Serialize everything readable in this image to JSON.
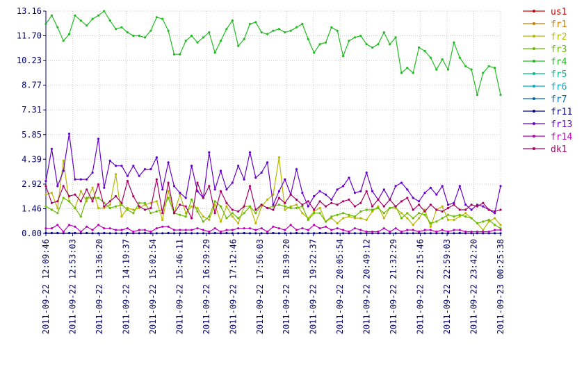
{
  "chart_data": {
    "type": "line",
    "title": "",
    "xlabel": "",
    "ylabel": "",
    "ylim": [
      0,
      13.16
    ],
    "grid": true,
    "legend_position": "right",
    "y_ticks": [
      "0.00",
      "1.46",
      "2.92",
      "4.39",
      "5.85",
      "7.31",
      "8.77",
      "10.23",
      "11.70",
      "13.16"
    ],
    "x_tick_labels": [
      "2011-09-22 12:09:46",
      "2011-09-22 12:53:03",
      "2011-09-22 13:36:20",
      "2011-09-22 14:19:37",
      "2011-09-22 15:02:54",
      "2011-09-22 15:46:11",
      "2011-09-22 16:29:29",
      "2011-09-22 17:12:46",
      "2011-09-22 17:56:03",
      "2011-09-22 18:39:20",
      "2011-09-22 19:22:37",
      "2011-09-22 20:05:54",
      "2011-09-22 20:49:12",
      "2011-09-22 21:32:29",
      "2011-09-22 22:15:46",
      "2011-09-22 22:59:03",
      "2011-09-22 23:42:20",
      "2011-09-23 00:25:38"
    ],
    "series": [
      {
        "name": "us1",
        "color": "#cc0000",
        "values": []
      },
      {
        "name": "fr1",
        "color": "#cc7a00",
        "values": []
      },
      {
        "name": "fr2",
        "color": "#b8b800",
        "values": [
          2.3,
          2.4,
          1.5,
          4.3,
          1.9,
          1.5,
          2.5,
          1.9,
          2.7,
          1.5,
          1.5,
          1.7,
          3.5,
          1.0,
          1.5,
          1.4,
          1.5,
          1.7,
          1.8,
          1.9,
          0.8,
          2.5,
          1.2,
          2.3,
          1.2,
          1.6,
          1.5,
          1.0,
          0.8,
          1.7,
          0.7,
          1.6,
          1.0,
          0.6,
          1.6,
          1.6,
          0.6,
          1.6,
          2.0,
          2.3,
          4.5,
          1.4,
          1.6,
          1.7,
          1.2,
          0.9,
          1.3,
          1.5,
          0.7,
          0.9,
          0.6,
          0.9,
          1.0,
          0.9,
          0.9,
          0.8,
          1.3,
          1.6,
          0.9,
          1.5,
          1.5,
          1.2,
          0.9,
          0.5,
          0.9,
          1.4,
          0.4,
          1.4,
          1.6,
          0.8,
          0.8,
          1.0,
          1.2,
          0.9,
          0.6,
          0.2,
          0.7,
          0.9,
          0.5
        ]
      },
      {
        "name": "fr3",
        "color": "#66bb00",
        "values": [
          1.6,
          1.4,
          1.2,
          2.1,
          1.9,
          1.5,
          1.0,
          2.1,
          2.1,
          2.1,
          1.8,
          1.5,
          1.6,
          1.7,
          1.4,
          1.2,
          1.8,
          1.8,
          1.2,
          1.3,
          1.4,
          2.1,
          1.2,
          1.1,
          1.0,
          2.0,
          1.3,
          0.7,
          1.0,
          1.9,
          1.6,
          0.9,
          1.2,
          0.9,
          1.2,
          1.6,
          1.2,
          1.7,
          1.5,
          1.6,
          1.7,
          1.6,
          1.5,
          1.5,
          1.6,
          0.8,
          1.2,
          1.2,
          0.7,
          1.0,
          1.1,
          1.2,
          1.1,
          1.0,
          1.3,
          1.4,
          1.4,
          1.5,
          1.2,
          1.5,
          1.6,
          0.9,
          1.2,
          0.9,
          1.2,
          1.1,
          0.6,
          0.7,
          0.9,
          1.1,
          1.0,
          1.1,
          1.0,
          0.9,
          0.6,
          0.7,
          0.8,
          0.5,
          0.3
        ]
      },
      {
        "name": "fr4",
        "color": "#22bb22",
        "values": [
          12.4,
          12.9,
          12.2,
          11.4,
          11.8,
          12.9,
          12.6,
          12.3,
          12.7,
          12.9,
          13.16,
          12.6,
          12.1,
          12.2,
          11.9,
          11.7,
          11.7,
          11.6,
          12.0,
          12.8,
          12.7,
          12.0,
          10.6,
          10.6,
          11.4,
          11.7,
          11.3,
          11.6,
          11.9,
          10.7,
          11.4,
          12.1,
          12.6,
          11.1,
          11.5,
          12.4,
          12.5,
          11.9,
          11.8,
          12.0,
          12.1,
          11.9,
          12.0,
          12.2,
          12.4,
          11.5,
          10.7,
          11.2,
          11.3,
          12.2,
          12.0,
          10.5,
          11.4,
          11.6,
          11.7,
          11.2,
          11.0,
          11.2,
          11.9,
          11.2,
          11.6,
          9.5,
          9.8,
          9.5,
          11.0,
          10.8,
          10.4,
          9.7,
          10.3,
          9.7,
          11.3,
          10.4,
          9.9,
          9.7,
          8.2,
          9.5,
          9.9,
          9.8,
          8.2
        ]
      },
      {
        "name": "fr5",
        "color": "#00bb88",
        "values": []
      },
      {
        "name": "fr6",
        "color": "#00aacc",
        "values": []
      },
      {
        "name": "fr7",
        "color": "#0066aa",
        "values": []
      },
      {
        "name": "fr11",
        "color": "#000099",
        "values": [
          0.02,
          0.02,
          0.02,
          0.01,
          0.02,
          0.02,
          0.01,
          0.02,
          0.01,
          0.01,
          0.02,
          0.01,
          0.01,
          0.01,
          0.02,
          0.01,
          0.01,
          0.02,
          0.01,
          0.01,
          0.01,
          0.02,
          0.01,
          0.01,
          0.02,
          0.01,
          0.01,
          0.01,
          0.01,
          0.02,
          0.01,
          0.02,
          0.01,
          0.01,
          0.02,
          0.01,
          0.01,
          0.01,
          0.01,
          0.02,
          0.01,
          0.01,
          0.01,
          0.02,
          0.01,
          0.01,
          0.01,
          0.02,
          0.02,
          0.01,
          0.01,
          0.01,
          0.01,
          0.01,
          0.01,
          0.02,
          0.01,
          0.01,
          0.01,
          0.01,
          0.01,
          0.02,
          0.01,
          0.01,
          0.02,
          0.01,
          0.01,
          0.01,
          0.01,
          0.01,
          0.01,
          0.02,
          0.01,
          0.01,
          0.01,
          0.01,
          0.01,
          0.01,
          0.01
        ]
      },
      {
        "name": "fr13",
        "color": "#6600cc",
        "values": [
          3.1,
          5.0,
          2.8,
          3.7,
          5.9,
          3.2,
          3.2,
          3.2,
          3.6,
          5.6,
          2.7,
          4.3,
          4.0,
          4.0,
          3.4,
          4.0,
          3.4,
          3.8,
          3.8,
          4.5,
          2.6,
          4.2,
          2.8,
          2.4,
          2.1,
          4.0,
          2.5,
          2.1,
          4.8,
          2.6,
          3.7,
          2.6,
          3.0,
          4.0,
          3.2,
          4.8,
          3.3,
          3.6,
          4.2,
          1.7,
          2.5,
          3.2,
          2.3,
          3.8,
          2.4,
          1.6,
          2.2,
          2.5,
          2.3,
          2.0,
          2.6,
          2.8,
          3.3,
          2.4,
          2.5,
          3.6,
          2.5,
          2.0,
          2.6,
          2.0,
          2.8,
          3.0,
          2.6,
          2.1,
          1.9,
          2.4,
          2.7,
          2.3,
          2.8,
          1.7,
          1.8,
          2.8,
          1.7,
          1.4,
          1.7,
          1.6,
          1.4,
          1.2,
          2.8
        ]
      },
      {
        "name": "fr14",
        "color": "#bb00bb",
        "values": [
          0.3,
          0.3,
          0.5,
          0.1,
          0.5,
          0.4,
          0.1,
          0.4,
          0.2,
          0.5,
          0.3,
          0.3,
          0.2,
          0.2,
          0.3,
          0.1,
          0.2,
          0.2,
          0.1,
          0.3,
          0.4,
          0.4,
          0.2,
          0.2,
          0.2,
          0.2,
          0.3,
          0.2,
          0.1,
          0.3,
          0.1,
          0.2,
          0.2,
          0.3,
          0.3,
          0.3,
          0.2,
          0.3,
          0.1,
          0.4,
          0.3,
          0.2,
          0.5,
          0.2,
          0.3,
          0.2,
          0.5,
          0.3,
          0.4,
          0.2,
          0.3,
          0.2,
          0.1,
          0.3,
          0.2,
          0.1,
          0.1,
          0.1,
          0.3,
          0.1,
          0.3,
          0.1,
          0.2,
          0.2,
          0.1,
          0.2,
          0.2,
          0.1,
          0.2,
          0.1,
          0.2,
          0.2,
          0.1,
          0.1,
          0.1,
          0.1,
          0.1,
          0.2,
          0.2
        ]
      },
      {
        "name": "dk1",
        "color": "#aa0066",
        "values": [
          2.8,
          1.8,
          1.9,
          2.8,
          2.2,
          2.3,
          1.9,
          2.6,
          1.9,
          2.9,
          1.6,
          1.9,
          2.2,
          1.8,
          3.1,
          2.2,
          1.6,
          1.4,
          1.5,
          3.2,
          1.2,
          3.0,
          1.2,
          1.7,
          1.6,
          0.9,
          3.0,
          2.1,
          2.8,
          1.2,
          2.5,
          1.8,
          1.4,
          1.3,
          1.6,
          2.8,
          1.4,
          1.7,
          1.5,
          1.4,
          2.1,
          1.8,
          2.3,
          2.0,
          1.7,
          1.9,
          1.4,
          1.9,
          1.6,
          1.8,
          1.7,
          1.9,
          2.0,
          1.6,
          1.8,
          2.5,
          1.6,
          2.0,
          1.6,
          2.0,
          1.6,
          1.9,
          2.1,
          1.4,
          1.7,
          1.3,
          1.7,
          1.4,
          1.3,
          1.5,
          1.7,
          1.4,
          1.4,
          1.7,
          1.6,
          1.8,
          1.4,
          1.3,
          1.4
        ]
      }
    ]
  }
}
